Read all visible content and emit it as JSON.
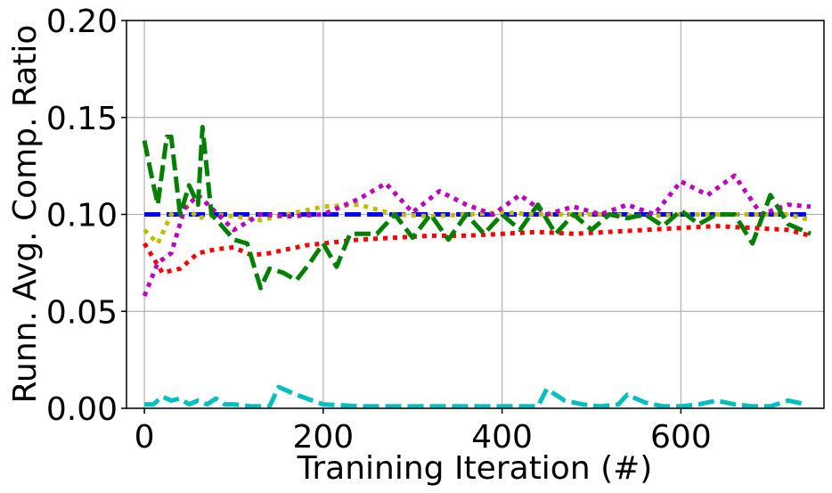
{
  "chart_data": {
    "type": "line",
    "title": "",
    "xlabel": "Tranining Iteration (#)",
    "ylabel": "Runn. Avg. Comp. Ratio",
    "xlim": [
      -20,
      760
    ],
    "ylim": [
      0.0,
      0.2
    ],
    "x_ticks": [
      0,
      200,
      400,
      600
    ],
    "x_tick_labels": [
      "0",
      "200",
      "400",
      "600"
    ],
    "y_ticks": [
      0.0,
      0.05,
      0.1,
      0.15,
      0.2
    ],
    "y_tick_labels": [
      "0.00",
      "0.05",
      "0.10",
      "0.15",
      "0.20"
    ],
    "grid": true,
    "legend": "none",
    "series": [
      {
        "color": "#0000ff",
        "dash": "dashed",
        "x": [
          0,
          50,
          100,
          150,
          200,
          250,
          300,
          350,
          400,
          450,
          500,
          550,
          600,
          650,
          700,
          740
        ],
        "y": [
          0.1,
          0.1,
          0.1,
          0.1,
          0.1,
          0.1,
          0.1,
          0.1,
          0.1,
          0.1,
          0.1,
          0.1,
          0.1,
          0.1,
          0.1,
          0.1
        ]
      },
      {
        "color": "#ff0000",
        "dash": "dotted",
        "x": [
          0,
          20,
          40,
          60,
          80,
          100,
          120,
          140,
          160,
          180,
          200,
          240,
          280,
          320,
          360,
          400,
          440,
          480,
          520,
          560,
          600,
          640,
          680,
          720,
          745
        ],
        "y": [
          0.085,
          0.07,
          0.072,
          0.08,
          0.082,
          0.083,
          0.079,
          0.08,
          0.082,
          0.084,
          0.085,
          0.087,
          0.088,
          0.089,
          0.089,
          0.09,
          0.091,
          0.09,
          0.091,
          0.092,
          0.093,
          0.094,
          0.093,
          0.092,
          0.089
        ]
      },
      {
        "color": "#bfbf00",
        "dash": "dotted",
        "x": [
          0,
          15,
          30,
          45,
          60,
          80,
          100,
          130,
          160,
          200,
          240,
          280,
          320,
          360,
          400,
          440,
          480,
          520,
          560,
          600,
          640,
          680,
          720,
          745
        ],
        "y": [
          0.092,
          0.085,
          0.1,
          0.105,
          0.098,
          0.1,
          0.099,
          0.097,
          0.1,
          0.104,
          0.105,
          0.1,
          0.099,
          0.1,
          0.101,
          0.1,
          0.1,
          0.1,
          0.099,
          0.1,
          0.1,
          0.1,
          0.1,
          0.097
        ]
      },
      {
        "color": "#bf00bf",
        "dash": "dotted",
        "x": [
          0,
          15,
          30,
          45,
          60,
          80,
          100,
          130,
          160,
          200,
          240,
          270,
          300,
          330,
          360,
          390,
          420,
          450,
          480,
          510,
          540,
          570,
          600,
          630,
          660,
          690,
          720,
          745
        ],
        "y": [
          0.058,
          0.075,
          0.08,
          0.103,
          0.11,
          0.101,
          0.092,
          0.1,
          0.099,
          0.1,
          0.108,
          0.116,
          0.101,
          0.112,
          0.105,
          0.1,
          0.11,
          0.1,
          0.104,
          0.1,
          0.105,
          0.1,
          0.117,
          0.11,
          0.12,
          0.1,
          0.105,
          0.104
        ]
      },
      {
        "color": "#008000",
        "dash": "dashed",
        "x": [
          0,
          8,
          15,
          25,
          30,
          40,
          50,
          60,
          65,
          75,
          85,
          100,
          115,
          130,
          140,
          155,
          170,
          185,
          200,
          215,
          230,
          245,
          260,
          280,
          300,
          320,
          340,
          360,
          380,
          400,
          420,
          440,
          460,
          480,
          500,
          520,
          540,
          560,
          580,
          600,
          620,
          640,
          660,
          680,
          700,
          720,
          745
        ],
        "y": [
          0.138,
          0.12,
          0.105,
          0.14,
          0.14,
          0.1,
          0.115,
          0.105,
          0.145,
          0.1,
          0.095,
          0.087,
          0.085,
          0.062,
          0.072,
          0.07,
          0.066,
          0.075,
          0.085,
          0.073,
          0.09,
          0.09,
          0.09,
          0.1,
          0.088,
          0.1,
          0.087,
          0.1,
          0.09,
          0.1,
          0.092,
          0.105,
          0.09,
          0.1,
          0.092,
          0.1,
          0.098,
          0.1,
          0.094,
          0.102,
          0.095,
          0.1,
          0.1,
          0.085,
          0.11,
          0.095,
          0.09
        ]
      },
      {
        "color": "#00bfbf",
        "dash": "dashed",
        "x": [
          0,
          10,
          20,
          30,
          40,
          50,
          60,
          70,
          80,
          90,
          100,
          120,
          140,
          150,
          170,
          200,
          240,
          280,
          320,
          360,
          400,
          440,
          450,
          470,
          490,
          510,
          530,
          540,
          560,
          580,
          600,
          620,
          640,
          660,
          680,
          700,
          720,
          740
        ],
        "y": [
          0.002,
          0.002,
          0.006,
          0.004,
          0.005,
          0.002,
          0.004,
          0.002,
          0.005,
          0.002,
          0.002,
          0.001,
          0.001,
          0.011,
          0.007,
          0.002,
          0.001,
          0.001,
          0.001,
          0.001,
          0.001,
          0.001,
          0.01,
          0.004,
          0.002,
          0.001,
          0.002,
          0.007,
          0.003,
          0.001,
          0.001,
          0.002,
          0.004,
          0.002,
          0.001,
          0.001,
          0.004,
          0.002
        ]
      }
    ]
  }
}
